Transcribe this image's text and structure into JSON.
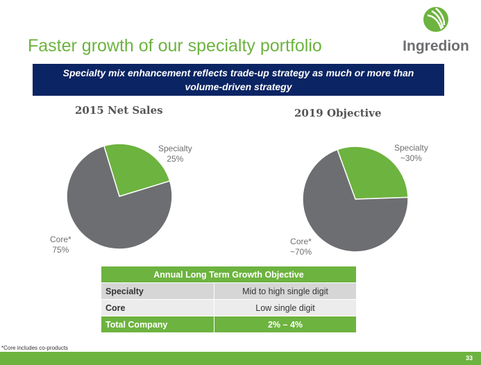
{
  "title": "Faster growth of our specialty portfolio",
  "logo": {
    "name": "Ingredion"
  },
  "banner": {
    "line1": "Specialty mix enhancement reflects trade-up strategy as much or more than",
    "line2": "volume-driven strategy"
  },
  "colors": {
    "green": "#6db33f",
    "gray": "#6d6e71",
    "navy": "#0b2463"
  },
  "chart_data": [
    {
      "type": "pie",
      "title": "2015 Net Sales",
      "categories": [
        "Specialty",
        "Core*"
      ],
      "values": [
        25,
        75
      ],
      "labels": [
        "25%",
        "75%"
      ]
    },
    {
      "type": "pie",
      "title": "2019 Objective",
      "categories": [
        "Specialty",
        "Core*"
      ],
      "values": [
        30,
        70
      ],
      "labels": [
        "~30%",
        "~70%"
      ]
    }
  ],
  "table": {
    "header": "Annual Long Term Growth Objective",
    "rows": [
      [
        "Specialty",
        "Mid to high single digit"
      ],
      [
        "Core",
        "Low single digit"
      ],
      [
        "Total Company",
        "2% – 4%"
      ]
    ]
  },
  "footnote": "*Core includes co-products",
  "page": "33"
}
